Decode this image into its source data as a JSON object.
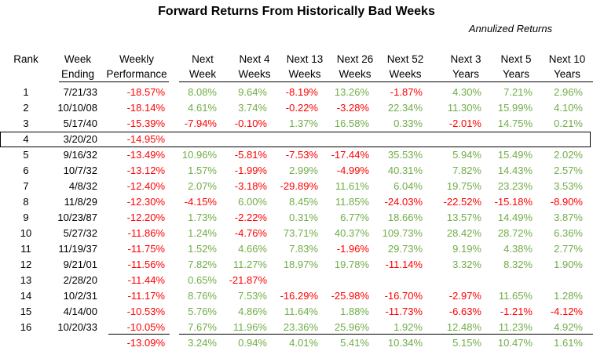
{
  "title": "Forward Returns From Historically Bad Weeks",
  "subtitle": "Annulized Returns",
  "headers": {
    "rank": [
      "",
      "Rank"
    ],
    "week_ending": [
      "Week",
      "Ending"
    ],
    "weekly_performance": [
      "Weekly",
      "Performance"
    ],
    "next_week": [
      "Next",
      "Week"
    ],
    "next_4_weeks": [
      "Next 4",
      "Weeks"
    ],
    "next_13_weeks": [
      "Next 13",
      "Weeks"
    ],
    "next_26_weeks": [
      "Next 26",
      "Weeks"
    ],
    "next_52_weeks": [
      "Next 52",
      "Weeks"
    ],
    "next_3_years": [
      "Next 3",
      "Years"
    ],
    "next_5_years": [
      "Next 5",
      "Years"
    ],
    "next_10_years": [
      "Next 10",
      "Years"
    ]
  },
  "rows": [
    {
      "rank": "1",
      "date": "7/21/33",
      "weekly": "-18.57%",
      "values": [
        "8.08%",
        "9.64%",
        "-8.19%",
        "13.26%",
        "-1.87%",
        "4.30%",
        "7.21%",
        "2.96%"
      ]
    },
    {
      "rank": "2",
      "date": "10/10/08",
      "weekly": "-18.14%",
      "values": [
        "4.61%",
        "3.74%",
        "-0.22%",
        "-3.28%",
        "22.34%",
        "11.30%",
        "15.99%",
        "4.10%"
      ]
    },
    {
      "rank": "3",
      "date": "5/17/40",
      "weekly": "-15.39%",
      "values": [
        "-7.94%",
        "-0.10%",
        "1.37%",
        "16.58%",
        "0.33%",
        "-2.01%",
        "14.75%",
        "0.21%"
      ]
    },
    {
      "rank": "4",
      "date": "3/20/20",
      "weekly": "-14.95%",
      "values": [
        "",
        "",
        "",
        "",
        "",
        "",
        "",
        ""
      ],
      "highlight": true
    },
    {
      "rank": "5",
      "date": "9/16/32",
      "weekly": "-13.49%",
      "values": [
        "10.96%",
        "-5.81%",
        "-7.53%",
        "-17.44%",
        "35.53%",
        "5.94%",
        "15.49%",
        "2.02%"
      ]
    },
    {
      "rank": "6",
      "date": "10/7/32",
      "weekly": "-13.12%",
      "values": [
        "1.57%",
        "-1.99%",
        "2.99%",
        "-4.99%",
        "40.31%",
        "7.82%",
        "14.43%",
        "2.57%"
      ]
    },
    {
      "rank": "7",
      "date": "4/8/32",
      "weekly": "-12.40%",
      "values": [
        "2.07%",
        "-3.18%",
        "-29.89%",
        "11.61%",
        "6.04%",
        "19.75%",
        "23.23%",
        "3.53%"
      ]
    },
    {
      "rank": "8",
      "date": "11/8/29",
      "weekly": "-12.30%",
      "values": [
        "-4.15%",
        "6.00%",
        "8.45%",
        "11.85%",
        "-24.03%",
        "-22.52%",
        "-15.18%",
        "-8.90%"
      ]
    },
    {
      "rank": "9",
      "date": "10/23/87",
      "weekly": "-12.20%",
      "values": [
        "1.73%",
        "-2.22%",
        "0.31%",
        "6.77%",
        "18.66%",
        "13.57%",
        "14.49%",
        "3.87%"
      ]
    },
    {
      "rank": "10",
      "date": "5/27/32",
      "weekly": "-11.86%",
      "values": [
        "1.24%",
        "-4.76%",
        "73.71%",
        "40.37%",
        "109.73%",
        "28.42%",
        "28.72%",
        "6.36%"
      ]
    },
    {
      "rank": "11",
      "date": "11/19/37",
      "weekly": "-11.75%",
      "values": [
        "1.52%",
        "4.66%",
        "7.83%",
        "-1.96%",
        "29.73%",
        "9.19%",
        "4.38%",
        "2.77%"
      ]
    },
    {
      "rank": "12",
      "date": "9/21/01",
      "weekly": "-11.56%",
      "values": [
        "7.82%",
        "11.27%",
        "18.97%",
        "19.78%",
        "-11.14%",
        "3.32%",
        "8.32%",
        "1.90%"
      ]
    },
    {
      "rank": "13",
      "date": "2/28/20",
      "weekly": "-11.44%",
      "values": [
        "0.65%",
        "-21.87%",
        "",
        "",
        "",
        "",
        "",
        ""
      ]
    },
    {
      "rank": "14",
      "date": "10/2/31",
      "weekly": "-11.17%",
      "values": [
        "8.76%",
        "7.53%",
        "-16.29%",
        "-25.98%",
        "-16.70%",
        "-2.97%",
        "11.65%",
        "1.28%"
      ]
    },
    {
      "rank": "15",
      "date": "4/14/00",
      "weekly": "-10.53%",
      "values": [
        "5.76%",
        "4.86%",
        "11.64%",
        "1.88%",
        "-11.73%",
        "-6.63%",
        "-1.21%",
        "-4.12%"
      ]
    },
    {
      "rank": "16",
      "date": "10/20/33",
      "weekly": "-10.05%",
      "values": [
        "7.67%",
        "11.96%",
        "23.36%",
        "25.96%",
        "1.92%",
        "12.48%",
        "11.23%",
        "4.92%"
      ]
    }
  ],
  "average": {
    "weekly": "-13.09%",
    "values": [
      "3.24%",
      "0.94%",
      "4.01%",
      "5.41%",
      "10.34%",
      "5.15%",
      "10.47%",
      "1.61%"
    ]
  },
  "colors": {
    "positive": "#70ad47",
    "negative": "#ff0000",
    "text": "#000000"
  }
}
